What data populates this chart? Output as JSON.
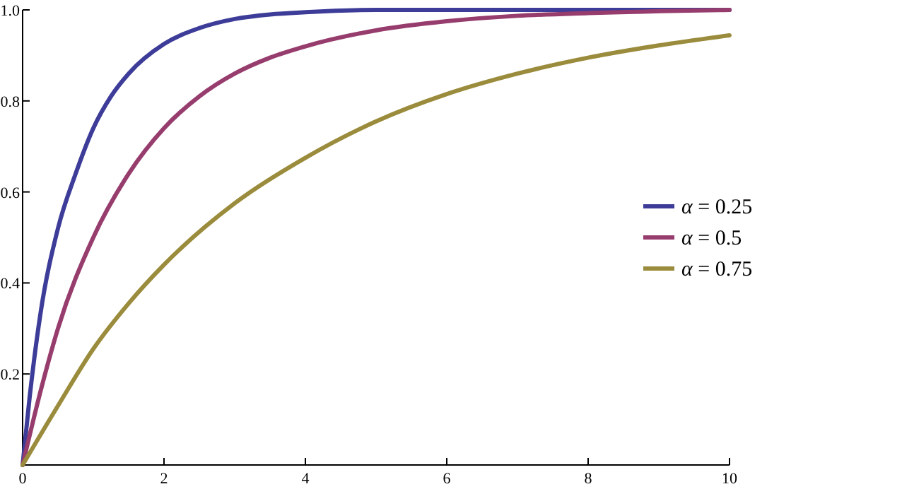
{
  "chart_data": {
    "type": "line",
    "xlim": [
      0,
      10
    ],
    "ylim": [
      0,
      1
    ],
    "xticks": [
      0,
      2,
      4,
      6,
      8,
      10
    ],
    "yticks": [
      {
        "value": 0,
        "label": null
      },
      0.2,
      0.4,
      0.6,
      0.8,
      {
        "value": 1,
        "label": "1.0"
      }
    ],
    "legend": "right",
    "grid": false,
    "series": [
      {
        "name": "α = 0.25",
        "color": "#3d3d99",
        "x": [
          0,
          0.1,
          0.25,
          0.5,
          0.75,
          1,
          1.25,
          1.5,
          2,
          2.5,
          3,
          3.5,
          4,
          5,
          10
        ],
        "values": [
          0,
          0.15,
          0.33,
          0.52,
          0.64,
          0.74,
          0.81,
          0.86,
          0.925,
          0.96,
          0.98,
          0.99,
          0.995,
          1,
          1
        ]
      },
      {
        "name": "α = 0.5",
        "color": "#973d6e",
        "x": [
          0,
          0.25,
          0.5,
          1,
          1.5,
          2,
          2.5,
          3,
          3.5,
          4,
          5,
          6,
          7,
          8,
          10
        ],
        "values": [
          0,
          0.16,
          0.3,
          0.5,
          0.64,
          0.74,
          0.81,
          0.86,
          0.895,
          0.92,
          0.955,
          0.975,
          0.987,
          0.993,
          1
        ]
      },
      {
        "name": "α = 0.75",
        "color": "#9a8c3c",
        "x": [
          0,
          0.5,
          1,
          1.5,
          2,
          3,
          4,
          5,
          6,
          7,
          8,
          9,
          10
        ],
        "values": [
          0,
          0.13,
          0.255,
          0.355,
          0.44,
          0.575,
          0.675,
          0.755,
          0.815,
          0.86,
          0.895,
          0.922,
          0.944
        ]
      }
    ]
  }
}
